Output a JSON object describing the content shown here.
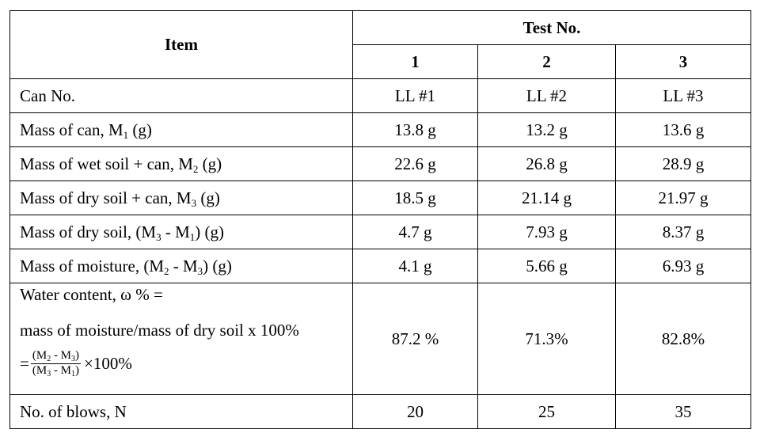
{
  "header": {
    "item": "Item",
    "test_no": "Test No.",
    "tests": [
      "1",
      "2",
      "3"
    ]
  },
  "rows": {
    "can_no": {
      "label": "Can No.",
      "values": [
        "LL #1",
        "LL #2",
        "LL #3"
      ]
    },
    "mass_can": {
      "label_a": "Mass of can, M",
      "label_sub": "1",
      "label_b": " (g)",
      "values": [
        "13.8 g",
        "13.2 g",
        "13.6 g"
      ]
    },
    "mass_wet": {
      "label_a": "Mass of wet soil + can, M",
      "label_sub": "2",
      "label_b": " (g)",
      "values": [
        "22.6 g",
        "26.8 g",
        "28.9 g"
      ]
    },
    "mass_dry_can": {
      "label_a": "Mass of dry soil + can, M",
      "label_sub": "3",
      "label_b": " (g)",
      "values": [
        "18.5 g",
        "21.14 g",
        "21.97 g"
      ]
    },
    "mass_dry": {
      "label_a": "Mass of dry soil, (M",
      "sub1": "3",
      "label_mid": " - M",
      "sub2": "1",
      "label_b": ") (g)",
      "values": [
        "4.7 g",
        "7.93 g",
        "8.37 g"
      ]
    },
    "mass_moist": {
      "label_a": "Mass of moisture, (M",
      "sub1": "2",
      "label_mid": " - M",
      "sub2": "3",
      "label_b": ") (g)",
      "values": [
        "4.1 g",
        "5.66 g",
        "6.93 g"
      ]
    },
    "water_content": {
      "line1": "Water content, ω % =",
      "line2": "mass of moisture/mass of dry soil x 100%",
      "eq": "=",
      "num_a": "(M",
      "num_sub1": "2",
      "num_mid": " - M",
      "num_sub2": "3",
      "num_b": ")",
      "den_a": "(M",
      "den_sub1": "3",
      "den_mid": " - M",
      "den_sub2": "1",
      "den_b": ")",
      "times": "×100%",
      "values": [
        "87.2 %",
        "71.3%",
        "82.8%"
      ]
    },
    "blows": {
      "label": "No. of blows, N",
      "values": [
        "20",
        "25",
        "35"
      ]
    }
  }
}
